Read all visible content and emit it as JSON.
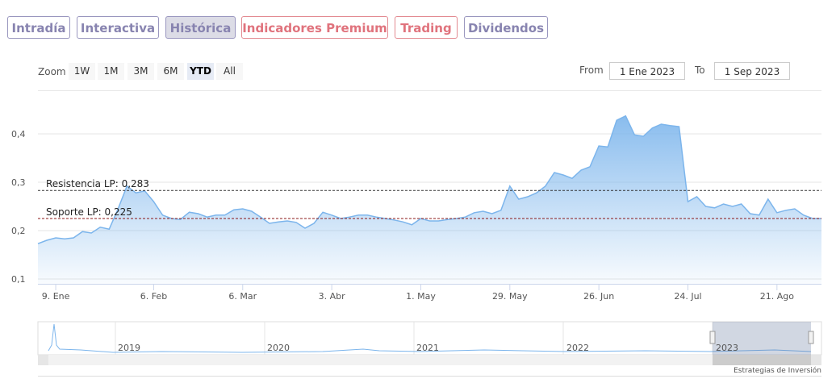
{
  "tabs": [
    "Intradía",
    "Interactiva",
    "Histórica",
    "Indicadores Premium",
    "Trading",
    "Dividendos"
  ],
  "zoom": {
    "label": "Zoom",
    "buttons": [
      "1W",
      "1M",
      "3M",
      "6M",
      "YTD",
      "All"
    ]
  },
  "range": {
    "from_label": "From",
    "from": "1 Ene 2023",
    "to_label": "To",
    "to": "1 Sep 2023"
  },
  "navigator": {
    "labels": [
      "2019",
      "2020",
      "2021",
      "2022",
      "2023"
    ]
  },
  "footer": "Estrategias de Inversión",
  "chart_data": {
    "type": "area",
    "color": "#7cb5ec",
    "categories": [
      null,
      null,
      "9. Ene",
      null,
      null,
      null,
      null,
      null,
      null,
      null,
      null,
      null,
      null,
      "6. Feb",
      null,
      null,
      null,
      null,
      null,
      null,
      null,
      null,
      null,
      "6. Mar",
      null,
      null,
      null,
      null,
      null,
      null,
      null,
      null,
      null,
      "3. Abr",
      null,
      null,
      null,
      null,
      null,
      null,
      null,
      null,
      null,
      "1. May",
      null,
      null,
      null,
      null,
      null,
      null,
      null,
      null,
      null,
      "29. May",
      null,
      null,
      null,
      null,
      null,
      null,
      null,
      null,
      null,
      "26. Jun",
      null,
      null,
      null,
      null,
      null,
      null,
      null,
      null,
      null,
      "24. Jul",
      null,
      null,
      null,
      null,
      null,
      null,
      null,
      null,
      null,
      "21. Ago",
      null,
      null,
      null,
      null,
      null
    ],
    "values": [
      0.173,
      0.18,
      0.185,
      0.183,
      0.185,
      0.198,
      0.195,
      0.207,
      0.203,
      0.245,
      0.292,
      0.278,
      0.282,
      0.26,
      0.232,
      0.225,
      0.223,
      0.238,
      0.235,
      0.228,
      0.232,
      0.232,
      0.243,
      0.245,
      0.24,
      0.228,
      0.215,
      0.218,
      0.22,
      0.217,
      0.205,
      0.215,
      0.238,
      0.232,
      0.225,
      0.228,
      0.232,
      0.232,
      0.228,
      0.225,
      0.222,
      0.218,
      0.212,
      0.225,
      0.22,
      0.22,
      0.223,
      0.225,
      0.228,
      0.237,
      0.24,
      0.235,
      0.242,
      0.292,
      0.265,
      0.27,
      0.278,
      0.292,
      0.32,
      0.315,
      0.308,
      0.325,
      0.332,
      0.375,
      0.373,
      0.428,
      0.437,
      0.398,
      0.395,
      0.412,
      0.42,
      0.417,
      0.415,
      0.26,
      0.27,
      0.25,
      0.247,
      0.255,
      0.25,
      0.255,
      0.235,
      0.232,
      0.265,
      0.237,
      0.242,
      0.245,
      0.232,
      0.225,
      0.225
    ],
    "ylim": [
      0.09,
      0.49
    ],
    "yticks": [
      {
        "value": 0.1,
        "label": "0,1"
      },
      {
        "value": 0.2,
        "label": "0,2"
      },
      {
        "value": 0.3,
        "label": "0,3"
      },
      {
        "value": 0.4,
        "label": "0,4"
      }
    ],
    "grid": true,
    "reference_lines": [
      {
        "value": 0.283,
        "label": "Resistencia LP: 0,283",
        "color": "#333333"
      },
      {
        "value": 0.225,
        "label": "Soporte LP: 0,225",
        "color": "#8b1a1a"
      }
    ]
  }
}
